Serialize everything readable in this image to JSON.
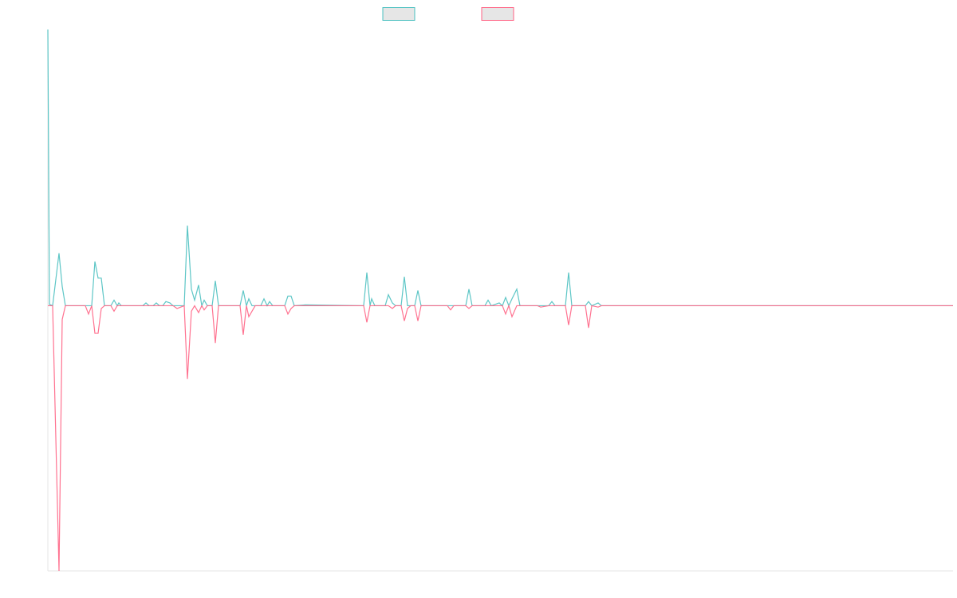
{
  "chart_data": {
    "type": "line",
    "x": [
      0,
      2,
      6,
      14,
      18,
      22,
      47,
      51,
      55,
      59,
      63,
      67,
      71,
      79,
      83,
      87,
      89,
      92,
      119,
      123,
      127,
      132,
      136,
      140,
      144,
      148,
      153,
      157,
      162,
      171,
      175,
      180,
      184,
      189,
      193,
      196,
      200,
      206,
      210,
      214,
      241,
      245,
      249,
      252,
      256,
      260,
      267,
      271,
      275,
      278,
      282,
      297,
      301,
      305,
      309,
      323,
      396,
      400,
      404,
      406,
      410,
      423,
      427,
      432,
      436,
      443,
      447,
      451,
      455,
      460,
      464,
      468,
      501,
      505,
      509,
      524,
      528,
      532,
      548,
      552,
      556,
      566,
      570,
      574,
      578,
      582,
      588,
      592,
      614,
      618,
      628,
      632,
      636,
      649,
      653,
      657,
      674,
      678,
      682,
      690,
      694,
      1135
    ],
    "xlim": [
      0,
      1135
    ],
    "ylim": [
      -96,
      100
    ],
    "series": [
      {
        "color": "#4bc0c0",
        "values": [
          100,
          0.5,
          0,
          19,
          7,
          0,
          0,
          0,
          0,
          16,
          10,
          10,
          0,
          0,
          2,
          0,
          1,
          0,
          0,
          1,
          0,
          0,
          1,
          0,
          0,
          1.5,
          1,
          0,
          0,
          0,
          29,
          6,
          2,
          7.5,
          0,
          2,
          0,
          0,
          9,
          0,
          0,
          5.5,
          0,
          2.5,
          0,
          0,
          0,
          2.5,
          0,
          1.5,
          0,
          0,
          3.5,
          3.5,
          0,
          0.3,
          0,
          12,
          0,
          2.5,
          0,
          0,
          4,
          1,
          0,
          0,
          10.5,
          0,
          0,
          0,
          5.5,
          0,
          0,
          0,
          0,
          0,
          6,
          0,
          0,
          2,
          0,
          1,
          0,
          3,
          0,
          2.5,
          6,
          0,
          0,
          0,
          0,
          1.5,
          0,
          0,
          12,
          0,
          0,
          1.5,
          0,
          1,
          0,
          0
        ]
      },
      {
        "color": "#ff6384",
        "values": [
          0,
          0,
          0,
          -96,
          -5,
          0,
          0,
          -3,
          0,
          -10,
          -10,
          -1,
          0,
          0,
          -2,
          0,
          0,
          0,
          0,
          0,
          0,
          0,
          0,
          0,
          0,
          0,
          0,
          0,
          -1,
          0,
          -26.5,
          -2,
          0,
          -2.5,
          0,
          -1.5,
          0,
          0,
          -13.5,
          0,
          0,
          -10.5,
          0,
          -4,
          -2,
          0,
          0,
          0,
          0,
          0,
          0,
          0,
          -3,
          -1,
          0,
          0,
          0,
          -6,
          0,
          0,
          0,
          0,
          0,
          -1,
          0,
          0,
          -5.5,
          -1,
          0,
          0,
          -5.5,
          0,
          0,
          -1.5,
          0,
          0,
          -1,
          0,
          0,
          0,
          0,
          0,
          0,
          -3,
          0,
          -4,
          0,
          0,
          0,
          -0.5,
          0,
          0,
          0,
          0,
          -7,
          0,
          0,
          -8,
          0,
          -0.5,
          0,
          0
        ]
      }
    ]
  }
}
